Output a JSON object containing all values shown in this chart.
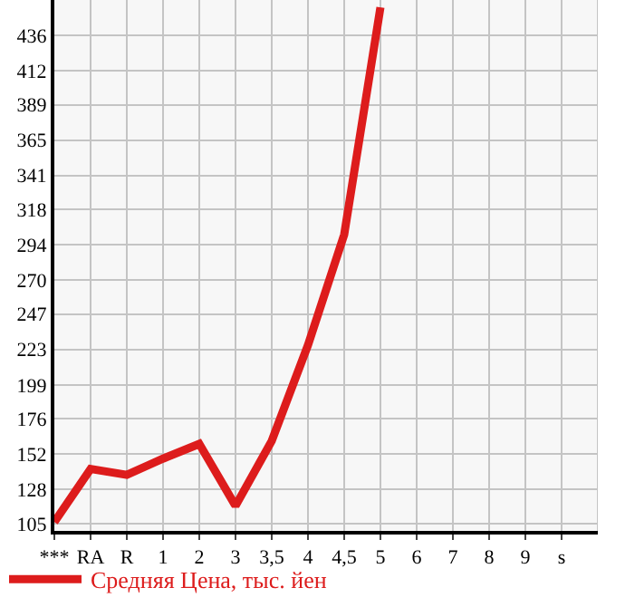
{
  "chart_data": {
    "type": "line",
    "categories": [
      "***",
      "RA",
      "R",
      "1",
      "2",
      "3",
      "3,5",
      "4",
      "4,5",
      "5",
      "6",
      "7",
      "8",
      "9",
      "s"
    ],
    "series": [
      {
        "name": "Средняя Цена, тыс. йен",
        "color": "#dd1c1c",
        "values": [
          106,
          142,
          138,
          149,
          159,
          117,
          161,
          226,
          301,
          455,
          null,
          null,
          null,
          null,
          null
        ]
      }
    ],
    "ylim": [
      100,
      460
    ],
    "yticks": [
      105,
      128,
      152,
      176,
      199,
      223,
      247,
      270,
      294,
      318,
      341,
      365,
      389,
      412,
      436
    ],
    "grid": true,
    "legend": "bottom left",
    "marker": "none",
    "line_style": "solid"
  }
}
